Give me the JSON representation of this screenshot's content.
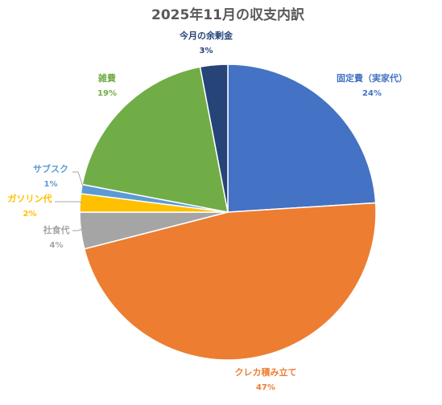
{
  "chart_data": {
    "type": "pie",
    "title": "2025年11月の収支内訳",
    "slices": [
      {
        "label": "固定費（実家代）",
        "value": 24,
        "display": "24%",
        "color": "#4472C4"
      },
      {
        "label": "クレカ積み立て",
        "value": 47,
        "display": "47%",
        "color": "#ED7D31"
      },
      {
        "label": "社食代",
        "value": 4,
        "display": "4%",
        "color": "#A5A5A5"
      },
      {
        "label": "ガソリン代",
        "value": 2,
        "display": "2%",
        "color": "#FFC000"
      },
      {
        "label": "サブスク",
        "value": 1,
        "display": "1%",
        "color": "#5B9BD5"
      },
      {
        "label": "雑費",
        "value": 19,
        "display": "19%",
        "color": "#70AD47"
      },
      {
        "label": "今月の余剰金",
        "value": 3,
        "display": "3%",
        "color": "#264478"
      }
    ]
  }
}
